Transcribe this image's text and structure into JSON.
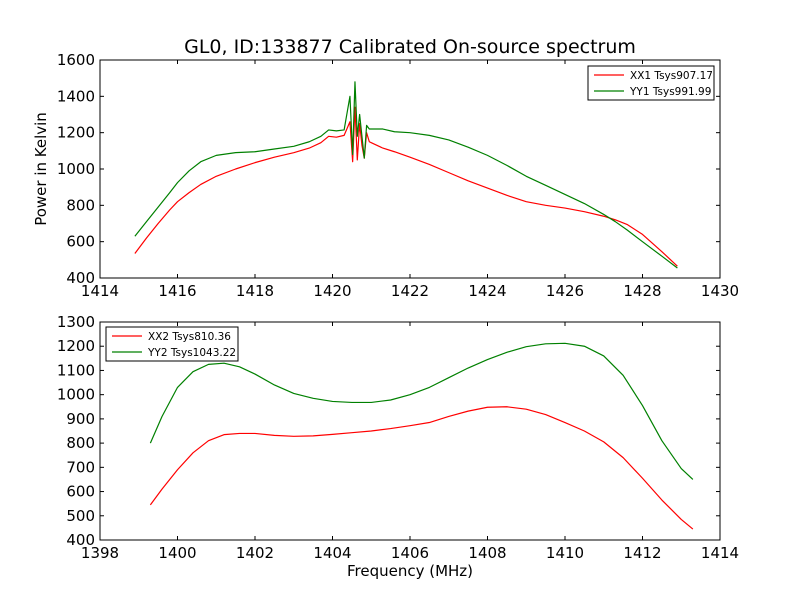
{
  "figure": {
    "title": "GL0, ID:133877 Calibrated On-source spectrum",
    "xlabel": "Frequency (MHz)",
    "ylabel": "Power in Kelvin"
  },
  "chart_data": [
    {
      "type": "line",
      "title": "GL0, ID:133877 Calibrated On-source spectrum",
      "xlabel": "",
      "ylabel": "Power in Kelvin",
      "xlim": [
        1414,
        1430
      ],
      "ylim": [
        400,
        1600
      ],
      "xticks": [
        1414,
        1416,
        1418,
        1420,
        1422,
        1424,
        1426,
        1428,
        1430
      ],
      "yticks": [
        400,
        600,
        800,
        1000,
        1200,
        1400,
        1600
      ],
      "legend_position": "top-right",
      "grid": false,
      "series": [
        {
          "name": "XX1 Tsys907.17",
          "color": "#ff0000",
          "x": [
            1414.9,
            1415.2,
            1415.5,
            1415.8,
            1416.0,
            1416.3,
            1416.6,
            1417.0,
            1417.5,
            1418.0,
            1418.5,
            1419.0,
            1419.4,
            1419.7,
            1419.9,
            1420.1,
            1420.3,
            1420.45,
            1420.52,
            1420.58,
            1420.64,
            1420.7,
            1420.76,
            1420.82,
            1420.88,
            1420.95,
            1421.0,
            1421.3,
            1421.6,
            1422.0,
            1422.5,
            1423.0,
            1423.5,
            1424.0,
            1424.5,
            1425.0,
            1425.5,
            1426.0,
            1426.5,
            1427.0,
            1427.3,
            1427.6,
            1428.0,
            1428.5,
            1428.9
          ],
          "y": [
            535,
            620,
            700,
            775,
            820,
            870,
            915,
            960,
            1000,
            1035,
            1065,
            1090,
            1115,
            1145,
            1180,
            1175,
            1185,
            1260,
            1040,
            1340,
            1050,
            1250,
            1130,
            1060,
            1200,
            1150,
            1145,
            1115,
            1095,
            1065,
            1025,
            980,
            935,
            895,
            855,
            820,
            800,
            785,
            765,
            740,
            720,
            695,
            640,
            545,
            465
          ]
        },
        {
          "name": "YY1 Tsys991.99",
          "color": "#008000",
          "x": [
            1414.9,
            1415.2,
            1415.5,
            1415.8,
            1416.0,
            1416.3,
            1416.6,
            1417.0,
            1417.5,
            1418.0,
            1418.5,
            1419.0,
            1419.4,
            1419.7,
            1419.9,
            1420.1,
            1420.3,
            1420.45,
            1420.52,
            1420.58,
            1420.64,
            1420.7,
            1420.76,
            1420.82,
            1420.88,
            1420.95,
            1421.0,
            1421.3,
            1421.6,
            1422.0,
            1422.5,
            1423.0,
            1423.5,
            1424.0,
            1424.5,
            1425.0,
            1425.5,
            1426.0,
            1426.5,
            1427.0,
            1427.3,
            1427.6,
            1428.0,
            1428.5,
            1428.9
          ],
          "y": [
            630,
            710,
            790,
            870,
            925,
            990,
            1040,
            1075,
            1090,
            1095,
            1110,
            1125,
            1150,
            1180,
            1215,
            1210,
            1215,
            1400,
            1080,
            1480,
            1180,
            1300,
            1180,
            1060,
            1240,
            1220,
            1220,
            1220,
            1205,
            1200,
            1185,
            1160,
            1120,
            1075,
            1020,
            960,
            910,
            860,
            810,
            750,
            710,
            665,
            600,
            520,
            455
          ]
        }
      ]
    },
    {
      "type": "line",
      "title": "",
      "xlabel": "Frequency (MHz)",
      "ylabel": "",
      "xlim": [
        1398,
        1414
      ],
      "ylim": [
        400,
        1300
      ],
      "xticks": [
        1398,
        1400,
        1402,
        1404,
        1406,
        1408,
        1410,
        1412,
        1414
      ],
      "yticks": [
        400,
        500,
        600,
        700,
        800,
        900,
        1000,
        1100,
        1200,
        1300
      ],
      "legend_position": "top-left",
      "grid": false,
      "series": [
        {
          "name": "XX2 Tsys810.36",
          "color": "#ff0000",
          "x": [
            1399.3,
            1399.6,
            1400.0,
            1400.4,
            1400.8,
            1401.2,
            1401.6,
            1402.0,
            1402.5,
            1403.0,
            1403.5,
            1404.0,
            1404.5,
            1405.0,
            1405.5,
            1406.0,
            1406.5,
            1407.0,
            1407.5,
            1408.0,
            1408.5,
            1409.0,
            1409.5,
            1410.0,
            1410.5,
            1411.0,
            1411.5,
            1412.0,
            1412.5,
            1413.0,
            1413.3
          ],
          "y": [
            545,
            610,
            690,
            760,
            810,
            835,
            840,
            840,
            832,
            828,
            830,
            836,
            843,
            850,
            860,
            872,
            885,
            910,
            932,
            948,
            950,
            940,
            918,
            885,
            850,
            805,
            740,
            655,
            565,
            485,
            445
          ]
        },
        {
          "name": "YY2 Tsys1043.22",
          "color": "#008000",
          "x": [
            1399.3,
            1399.6,
            1400.0,
            1400.4,
            1400.8,
            1401.2,
            1401.6,
            1402.0,
            1402.5,
            1403.0,
            1403.5,
            1404.0,
            1404.5,
            1405.0,
            1405.5,
            1406.0,
            1406.5,
            1407.0,
            1407.5,
            1408.0,
            1408.5,
            1409.0,
            1409.5,
            1410.0,
            1410.5,
            1411.0,
            1411.5,
            1412.0,
            1412.5,
            1413.0,
            1413.3
          ],
          "y": [
            800,
            910,
            1030,
            1095,
            1125,
            1130,
            1115,
            1085,
            1040,
            1005,
            985,
            972,
            968,
            968,
            978,
            1000,
            1030,
            1070,
            1110,
            1145,
            1175,
            1198,
            1210,
            1212,
            1200,
            1160,
            1080,
            955,
            810,
            695,
            650
          ]
        }
      ]
    }
  ]
}
